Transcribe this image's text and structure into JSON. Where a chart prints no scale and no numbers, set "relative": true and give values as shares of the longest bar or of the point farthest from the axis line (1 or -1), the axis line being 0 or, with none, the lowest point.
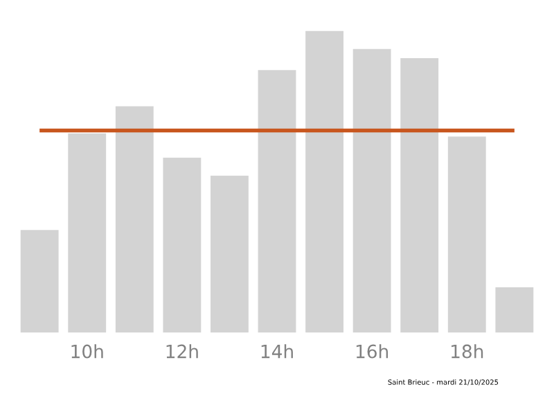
{
  "chart_data": {
    "type": "bar",
    "relative": true,
    "categories": [
      null,
      "10h",
      null,
      "12h",
      null,
      "14h",
      null,
      "16h",
      null,
      "18h",
      null
    ],
    "values": [
      0.34,
      0.66,
      0.75,
      0.58,
      0.52,
      0.87,
      1,
      0.94,
      0.91,
      0.65,
      0.15
    ],
    "color": "#d3d3d3",
    "ref_lines": [
      {
        "axis": "y",
        "value": 0.67,
        "color": "#c8561e",
        "line_style": "solid"
      }
    ],
    "annotations": [
      "Saint Brieuc - mardi 21/10/2025"
    ],
    "grid": false,
    "legend": false
  }
}
